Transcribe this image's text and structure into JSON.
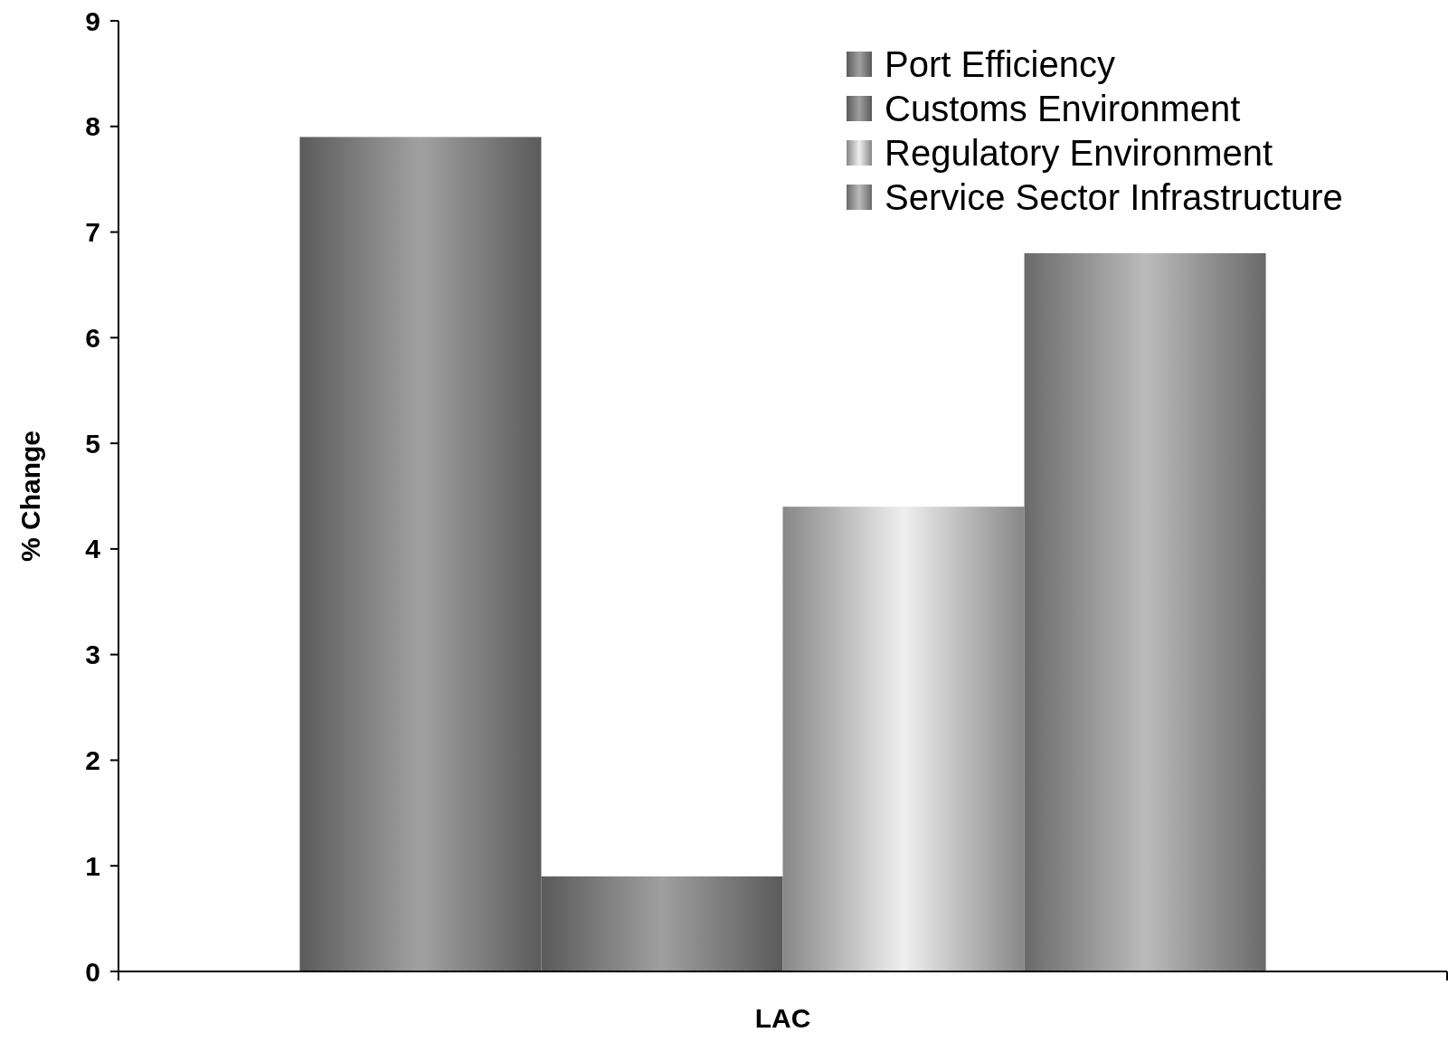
{
  "chart_data": {
    "type": "bar",
    "ylabel": "% Change",
    "categories": [
      "LAC"
    ],
    "series": [
      {
        "name": "Port Efficiency",
        "color": "#8c8c8c",
        "values": [
          7.9
        ]
      },
      {
        "name": "Customs Environment",
        "color": "#8a8a8a",
        "values": [
          0.9
        ]
      },
      {
        "name": "Regulatory Environment",
        "color": "#cfcfcf",
        "values": [
          4.4
        ]
      },
      {
        "name": "Service Sector Infrastructure",
        "color": "#a2a2a2",
        "values": [
          6.8
        ]
      }
    ],
    "ylim": [
      0,
      9
    ],
    "yticks": [
      0,
      1,
      2,
      3,
      4,
      5,
      6,
      7,
      8,
      9
    ],
    "grid": false,
    "legend": "top right"
  }
}
